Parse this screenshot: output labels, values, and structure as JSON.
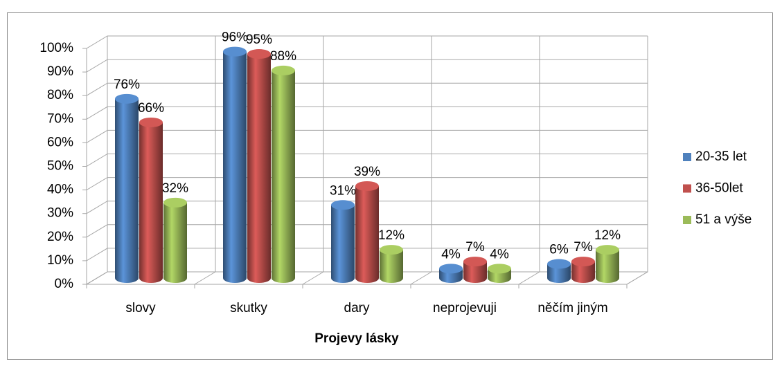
{
  "chart_data": {
    "type": "bar3d",
    "x_label": "Projevy lásky",
    "categories": [
      "slovy",
      "skutky",
      "dary",
      "neprojevuji",
      "něčím jiným"
    ],
    "series": [
      {
        "name": "20-35 let",
        "color": "#4f81bd",
        "values": [
          76,
          96,
          31,
          4,
          6
        ],
        "value_labels": [
          "76%",
          "96%",
          "31%",
          "4%",
          "6%"
        ]
      },
      {
        "name": "36-50let",
        "color": "#c0504d",
        "values": [
          66,
          95,
          39,
          7,
          7
        ],
        "value_labels": [
          "66%",
          "95%",
          "39%",
          "7%",
          "7%"
        ]
      },
      {
        "name": "51 a výše",
        "color": "#9bbb59",
        "values": [
          32,
          88,
          12,
          4,
          12
        ],
        "value_labels": [
          "32%",
          "88%",
          "12%",
          "4%",
          "12%"
        ]
      }
    ],
    "ylim": [
      0,
      100
    ],
    "yticks": [
      {
        "value": 0,
        "label": "0%"
      },
      {
        "value": 10,
        "label": "10%"
      },
      {
        "value": 20,
        "label": "20%"
      },
      {
        "value": 30,
        "label": "30%"
      },
      {
        "value": 40,
        "label": "40%"
      },
      {
        "value": 50,
        "label": "50%"
      },
      {
        "value": 60,
        "label": "60%"
      },
      {
        "value": 70,
        "label": "70%"
      },
      {
        "value": 80,
        "label": "80%"
      },
      {
        "value": 90,
        "label": "90%"
      },
      {
        "value": 100,
        "label": "100%"
      }
    ],
    "grid": true,
    "legend": "right"
  }
}
